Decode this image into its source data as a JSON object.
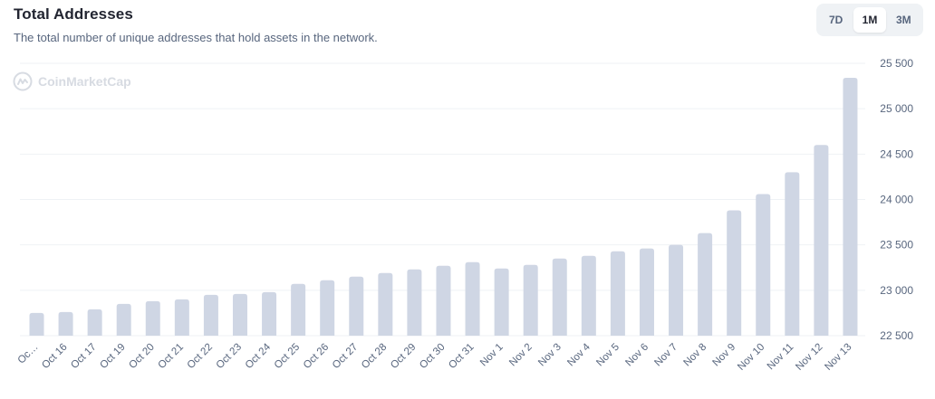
{
  "header": {
    "title": "Total Addresses",
    "subtitle": "The total number of unique addresses that hold assets in the network."
  },
  "range_toggle": {
    "options": [
      "7D",
      "1M",
      "3M"
    ],
    "selected": "1M"
  },
  "watermark": {
    "text": "CoinMarketCap",
    "icon": "coinmarketcap-logo-icon"
  },
  "colors": {
    "bar": "#cfd6e4",
    "grid": "#eff2f5",
    "axis_text": "#58667e",
    "accent_bg": "#eff2f5"
  },
  "chart_data": {
    "type": "bar",
    "title": "Total Addresses",
    "categories": [
      "Oc…",
      "Oct 16",
      "Oct 17",
      "Oct 19",
      "Oct 20",
      "Oct 21",
      "Oct 22",
      "Oct 23",
      "Oct 24",
      "Oct 25",
      "Oct 26",
      "Oct 27",
      "Oct 28",
      "Oct 29",
      "Oct 30",
      "Oct 31",
      "Nov 1",
      "Nov 2",
      "Nov 3",
      "Nov 4",
      "Nov 5",
      "Nov 6",
      "Nov 7",
      "Nov 8",
      "Nov 9",
      "Nov 10",
      "Nov 11",
      "Nov 12",
      "Nov 13"
    ],
    "values": [
      22750,
      22760,
      22790,
      22850,
      22880,
      22900,
      22950,
      22960,
      22980,
      23070,
      23110,
      23150,
      23190,
      23230,
      23270,
      23310,
      23240,
      23280,
      23350,
      23380,
      23430,
      23460,
      23500,
      23630,
      23880,
      24060,
      24300,
      24600,
      25340
    ],
    "yaxis": {
      "position": "right",
      "ticks": [
        22500,
        23000,
        23500,
        24000,
        24500,
        25000,
        25500
      ],
      "tick_labels": [
        "22 500",
        "23 000",
        "23 500",
        "24 000",
        "24 500",
        "25 000",
        "25 500"
      ],
      "ylim": [
        22500,
        25500
      ]
    },
    "grid": true,
    "legend": "none"
  }
}
